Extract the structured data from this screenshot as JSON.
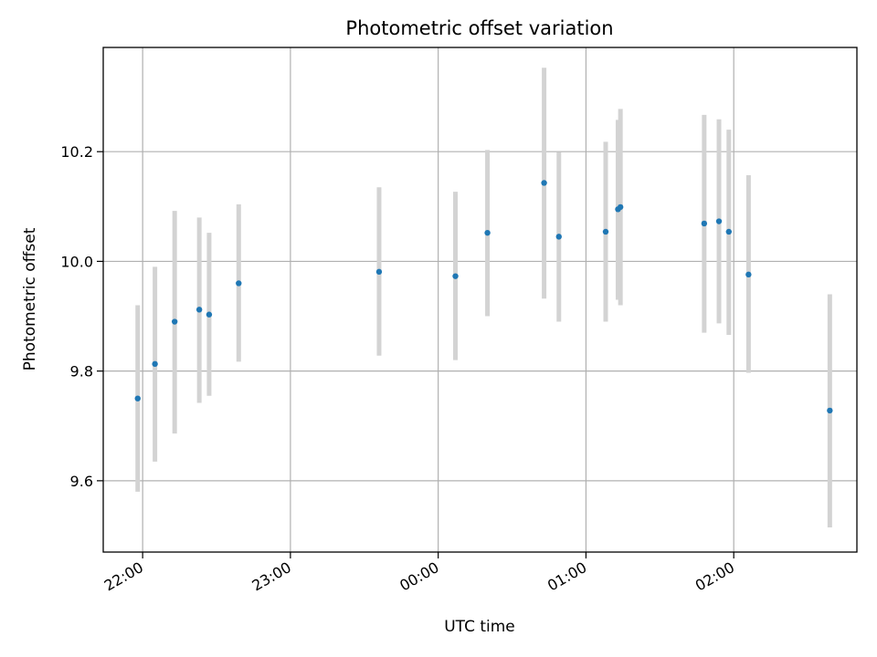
{
  "chart_data": {
    "type": "scatter",
    "title": "Photometric offset variation",
    "xlabel": "UTC time",
    "ylabel": "Photometric offset",
    "x_axis": {
      "kind": "time",
      "ticks": [
        "22:00",
        "23:00",
        "00:00",
        "01:00",
        "02:00"
      ],
      "range": [
        "21:44",
        "02:50"
      ]
    },
    "ylim": [
      9.47,
      10.39
    ],
    "yticks": [
      "9.6",
      "9.8",
      "10.0",
      "10.2"
    ],
    "grid": true,
    "colors": {
      "points": "#1f77b4",
      "errorbars": "#d3d3d3",
      "grid": "#b0b0b0"
    },
    "series": [
      {
        "points": [
          {
            "time": "21:58",
            "y": 9.75,
            "ylow": 9.58,
            "yhigh": 9.92
          },
          {
            "time": "22:05",
            "y": 9.813,
            "ylow": 9.635,
            "yhigh": 9.99
          },
          {
            "time": "22:13",
            "y": 9.89,
            "ylow": 9.686,
            "yhigh": 10.092
          },
          {
            "time": "22:23",
            "y": 9.912,
            "ylow": 9.742,
            "yhigh": 10.08
          },
          {
            "time": "22:27",
            "y": 9.903,
            "ylow": 9.755,
            "yhigh": 10.052
          },
          {
            "time": "22:39",
            "y": 9.96,
            "ylow": 9.817,
            "yhigh": 10.104
          },
          {
            "time": "23:36",
            "y": 9.981,
            "ylow": 9.828,
            "yhigh": 10.135
          },
          {
            "time": "00:07",
            "y": 9.973,
            "ylow": 9.82,
            "yhigh": 10.127
          },
          {
            "time": "00:20",
            "y": 10.052,
            "ylow": 9.9,
            "yhigh": 10.203
          },
          {
            "time": "00:43",
            "y": 10.143,
            "ylow": 9.932,
            "yhigh": 10.353
          },
          {
            "time": "00:49",
            "y": 10.045,
            "ylow": 9.89,
            "yhigh": 10.199
          },
          {
            "time": "01:08",
            "y": 10.054,
            "ylow": 9.89,
            "yhigh": 10.218
          },
          {
            "time": "01:13",
            "y": 10.095,
            "ylow": 9.93,
            "yhigh": 10.258
          },
          {
            "time": "01:14",
            "y": 10.099,
            "ylow": 9.92,
            "yhigh": 10.278
          },
          {
            "time": "01:48",
            "y": 10.069,
            "ylow": 9.87,
            "yhigh": 10.267
          },
          {
            "time": "01:54",
            "y": 10.073,
            "ylow": 9.887,
            "yhigh": 10.259
          },
          {
            "time": "01:58",
            "y": 10.054,
            "ylow": 9.866,
            "yhigh": 10.24
          },
          {
            "time": "02:06",
            "y": 9.976,
            "ylow": 9.797,
            "yhigh": 10.157
          },
          {
            "time": "02:39",
            "y": 9.728,
            "ylow": 9.515,
            "yhigh": 9.94
          }
        ]
      }
    ]
  }
}
